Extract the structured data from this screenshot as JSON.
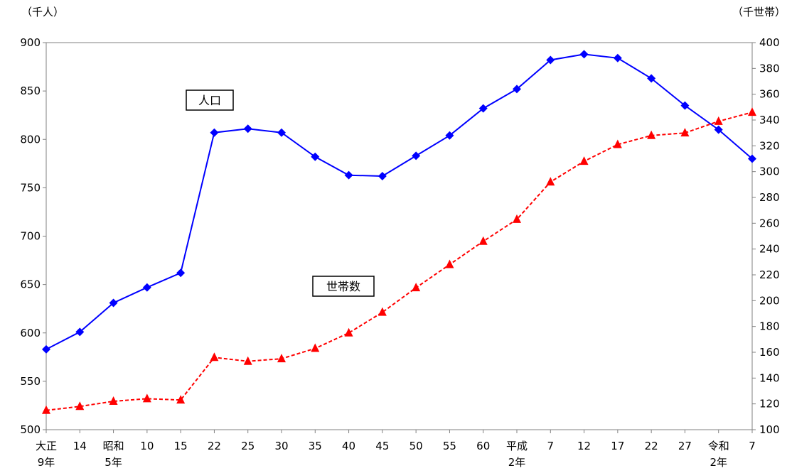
{
  "chart_data": {
    "type": "line",
    "units": {
      "left": "（千人）",
      "right": "（千世帯）"
    },
    "categories": [
      "大正9年",
      "14",
      "昭和5年",
      "10",
      "15",
      "22",
      "25",
      "30",
      "35",
      "40",
      "45",
      "50",
      "55",
      "60",
      "平成2年",
      "7",
      "12",
      "17",
      "22",
      "27",
      "令和2年",
      "7"
    ],
    "x_labels": [
      [
        "大正",
        "9年"
      ],
      [
        "14"
      ],
      [
        "昭和",
        "5年"
      ],
      [
        "10"
      ],
      [
        "15"
      ],
      [
        "22"
      ],
      [
        "25"
      ],
      [
        "30"
      ],
      [
        "35"
      ],
      [
        "40"
      ],
      [
        "45"
      ],
      [
        "50"
      ],
      [
        "55"
      ],
      [
        "60"
      ],
      [
        "平成",
        "2年"
      ],
      [
        "7"
      ],
      [
        "12"
      ],
      [
        "17"
      ],
      [
        "22"
      ],
      [
        "27"
      ],
      [
        "令和",
        "2年"
      ],
      [
        "7"
      ]
    ],
    "y_left": {
      "min": 500,
      "max": 900,
      "step": 50,
      "ticks": [
        "500",
        "550",
        "600",
        "650",
        "700",
        "750",
        "800",
        "850",
        "900"
      ]
    },
    "y_right": {
      "min": 100,
      "max": 400,
      "step": 20,
      "ticks": [
        "100",
        "120",
        "140",
        "160",
        "180",
        "200",
        "220",
        "240",
        "260",
        "280",
        "300",
        "320",
        "340",
        "360",
        "380",
        "400"
      ]
    },
    "series": [
      {
        "name": "人口",
        "axis": "left",
        "color": "#0000ff",
        "marker": "diamond",
        "dash": "solid",
        "values": [
          583,
          601,
          631,
          647,
          662,
          807,
          811,
          807,
          782,
          763,
          762,
          783,
          804,
          832,
          852,
          882,
          888,
          884,
          863,
          835,
          810,
          780
        ]
      },
      {
        "name": "世帯数",
        "axis": "right",
        "color": "#ff0000",
        "marker": "triangle",
        "dash": "dashed",
        "values": [
          115,
          118,
          122,
          124,
          123,
          156,
          153,
          155,
          163,
          175,
          191,
          210,
          228,
          246,
          263,
          292,
          308,
          321,
          328,
          330,
          339,
          346
        ]
      }
    ],
    "annotations": [
      {
        "text": "人口",
        "series": "人口"
      },
      {
        "text": "世帯数",
        "series": "世帯数"
      }
    ],
    "grid": false,
    "legend": "none"
  }
}
